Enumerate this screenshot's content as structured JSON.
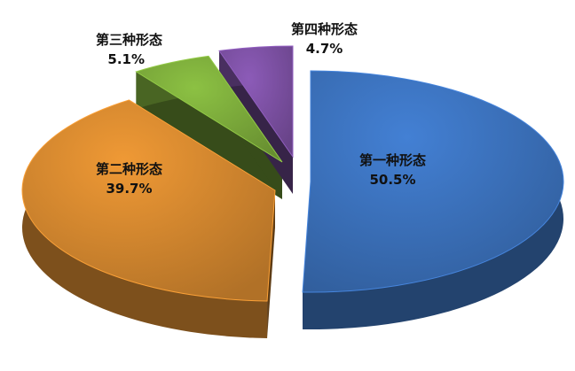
{
  "chart_data": {
    "type": "pie",
    "style": "3d-exploded",
    "title": "",
    "slices": [
      {
        "label": "第一种形态",
        "value": 50.5,
        "display": "50.5%",
        "color": "#3a6fb8"
      },
      {
        "label": "第二种形态",
        "value": 39.7,
        "display": "39.7%",
        "color": "#d0852e"
      },
      {
        "label": "第三种形态",
        "value": 5.1,
        "display": "5.1%",
        "color": "#7aa83a"
      },
      {
        "label": "第四种形态",
        "value": 4.7,
        "display": "4.7%",
        "color": "#7a4fa0"
      }
    ],
    "start_angle": "top",
    "direction": "clockwise"
  }
}
